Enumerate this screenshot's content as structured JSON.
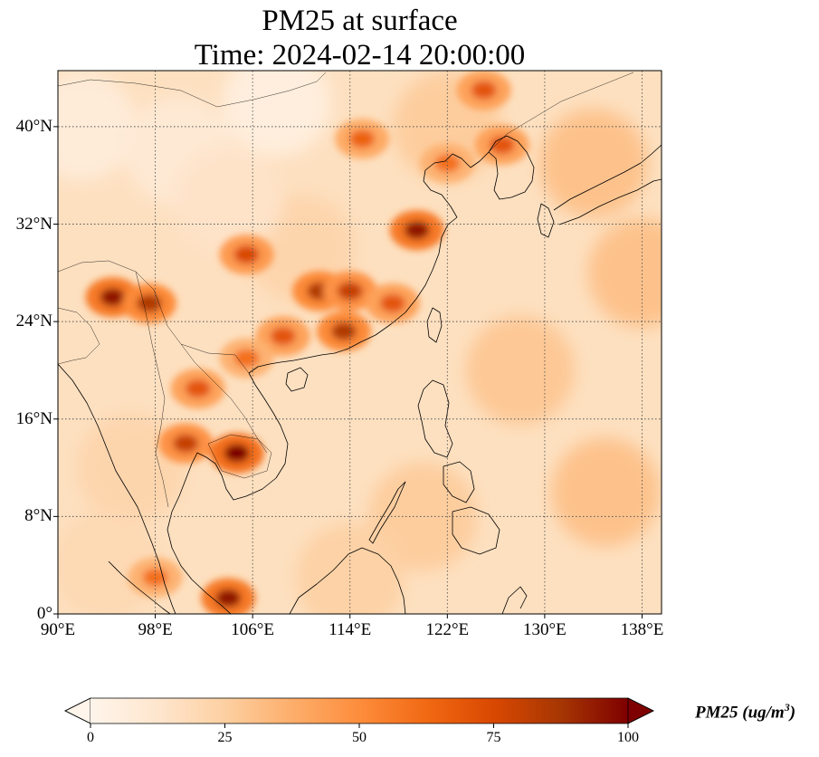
{
  "title": {
    "line1": "PM25 at surface",
    "line2": "Time: 2024-02-14 20:00:00"
  },
  "map": {
    "lon_range": [
      90,
      139.6
    ],
    "lat_range": [
      0,
      44.6
    ],
    "lat_ticks": [
      {
        "value": 40,
        "label": "40°N"
      },
      {
        "value": 32,
        "label": "32°N"
      },
      {
        "value": 24,
        "label": "24°N"
      },
      {
        "value": 16,
        "label": "16°N"
      },
      {
        "value": 8,
        "label": "8°N"
      },
      {
        "value": 0,
        "label": "0°"
      }
    ],
    "lon_ticks": [
      {
        "value": 90,
        "label": "90°E"
      },
      {
        "value": 98,
        "label": "98°E"
      },
      {
        "value": 106,
        "label": "106°E"
      },
      {
        "value": 114,
        "label": "114°E"
      },
      {
        "value": 122,
        "label": "122°E"
      },
      {
        "value": 130,
        "label": "130°E"
      },
      {
        "value": 138,
        "label": "138°E"
      }
    ]
  },
  "colorbar": {
    "min": 0,
    "max": 100,
    "ticks": [
      "0",
      "25",
      "50",
      "75",
      "100"
    ],
    "label_main": "PM25 (ug/m",
    "label_sup": "3",
    "label_end": ")",
    "colors": [
      "#fff5eb",
      "#fee6ce",
      "#fdd0a2",
      "#fdae6b",
      "#fd8d3c",
      "#f16913",
      "#d94801",
      "#a63603",
      "#7f0000"
    ]
  },
  "field": {
    "background_level": 18,
    "hotspots": [
      {
        "region": "Sichuan Basin / Chongqing",
        "lon": 105.5,
        "lat": 29.5,
        "value": 75
      },
      {
        "region": "Hubei-Hunan",
        "lon": 111.5,
        "lat": 26.5,
        "value": 85
      },
      {
        "region": "Jiangxi",
        "lon": 114,
        "lat": 26.5,
        "value": 80
      },
      {
        "region": "Yangtze River Delta",
        "lon": 119.5,
        "lat": 31.5,
        "value": 95
      },
      {
        "region": "Fujian coast",
        "lon": 117.5,
        "lat": 25.5,
        "value": 70
      },
      {
        "region": "Guangdong",
        "lon": 113.5,
        "lat": 23.2,
        "value": 85
      },
      {
        "region": "Guangxi",
        "lon": 108.5,
        "lat": 22.8,
        "value": 70
      },
      {
        "region": "Myanmar / NE India",
        "lon": 94.5,
        "lat": 26,
        "value": 95
      },
      {
        "region": "Northern Myanmar",
        "lon": 97.5,
        "lat": 25.5,
        "value": 85
      },
      {
        "region": "Northern Laos",
        "lon": 101.5,
        "lat": 18.5,
        "value": 70
      },
      {
        "region": "Cambodia",
        "lon": 104.7,
        "lat": 13.2,
        "value": 100
      },
      {
        "region": "Central Thailand",
        "lon": 100.5,
        "lat": 14,
        "value": 80
      },
      {
        "region": "North China Plain",
        "lon": 115,
        "lat": 39,
        "value": 65
      },
      {
        "region": "Korea west coast",
        "lon": 126.5,
        "lat": 38.5,
        "value": 70
      },
      {
        "region": "Northeast China",
        "lon": 125,
        "lat": 43,
        "value": 70
      },
      {
        "region": "Bohai plume",
        "lon": 122,
        "lat": 37,
        "value": 60
      },
      {
        "region": "Northern Vietnam",
        "lon": 105.5,
        "lat": 21,
        "value": 60
      },
      {
        "region": "Singapore / Johor",
        "lon": 104,
        "lat": 1.3,
        "value": 95
      },
      {
        "region": "Sumatra",
        "lon": 98,
        "lat": 3,
        "value": 60
      }
    ]
  }
}
